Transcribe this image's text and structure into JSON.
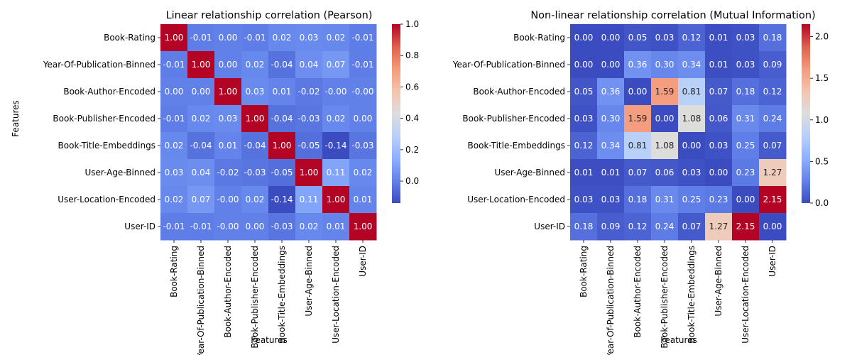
{
  "chart_data": [
    {
      "type": "heatmap",
      "title": "Linear relationship correlation (Pearson)",
      "xlabel": "Features",
      "ylabel": "Features",
      "rows": [
        "Book-Rating",
        "Year-Of-Publication-Binned",
        "Book-Author-Encoded",
        "Book-Publisher-Encoded",
        "Book-Title-Embeddings",
        "User-Age-Binned",
        "User-Location-Encoded",
        "User-ID"
      ],
      "columns": [
        "Book-Rating",
        "Year-Of-Publication-Binned",
        "Book-Author-Encoded",
        "Book-Publisher-Encoded",
        "Book-Title-Embeddings",
        "User-Age-Binned",
        "User-Location-Encoded",
        "User-ID"
      ],
      "values": [
        [
          1.0,
          -0.01,
          0.0,
          -0.01,
          0.02,
          0.03,
          0.02,
          -0.01
        ],
        [
          -0.01,
          1.0,
          0.0,
          0.02,
          -0.04,
          0.04,
          0.07,
          -0.01
        ],
        [
          0.0,
          0.0,
          1.0,
          0.03,
          0.01,
          -0.02,
          -0.0,
          -0.0
        ],
        [
          -0.01,
          0.02,
          0.03,
          1.0,
          -0.04,
          -0.03,
          0.02,
          0.0
        ],
        [
          0.02,
          -0.04,
          0.01,
          -0.04,
          1.0,
          -0.05,
          -0.14,
          -0.03
        ],
        [
          0.03,
          0.04,
          -0.02,
          -0.03,
          -0.05,
          1.0,
          0.11,
          0.02
        ],
        [
          0.02,
          0.07,
          -0.0,
          0.02,
          -0.14,
          0.11,
          1.0,
          0.01
        ],
        [
          -0.01,
          -0.01,
          -0.0,
          0.0,
          -0.03,
          0.02,
          0.01,
          1.0
        ]
      ],
      "labels": [
        [
          "1.00",
          "-0.01",
          "0.00",
          "-0.01",
          "0.02",
          "0.03",
          "0.02",
          "-0.01"
        ],
        [
          "-0.01",
          "1.00",
          "0.00",
          "0.02",
          "-0.04",
          "0.04",
          "0.07",
          "-0.01"
        ],
        [
          "0.00",
          "0.00",
          "1.00",
          "0.03",
          "0.01",
          "-0.02",
          "-0.00",
          "-0.00"
        ],
        [
          "-0.01",
          "0.02",
          "0.03",
          "1.00",
          "-0.04",
          "-0.03",
          "0.02",
          "0.00"
        ],
        [
          "0.02",
          "-0.04",
          "0.01",
          "-0.04",
          "1.00",
          "-0.05",
          "-0.14",
          "-0.03"
        ],
        [
          "0.03",
          "0.04",
          "-0.02",
          "-0.03",
          "-0.05",
          "1.00",
          "0.11",
          "0.02"
        ],
        [
          "0.02",
          "0.07",
          "-0.00",
          "0.02",
          "-0.14",
          "0.11",
          "1.00",
          "0.01"
        ],
        [
          "-0.01",
          "-0.01",
          "-0.00",
          "0.00",
          "-0.03",
          "0.02",
          "0.01",
          "1.00"
        ]
      ],
      "vmin": -0.14,
      "vmax": 1.0,
      "colormap": "coolwarm",
      "colorbar_ticks": [
        0.0,
        0.2,
        0.4,
        0.6,
        0.8,
        1.0
      ],
      "colorbar_tick_labels": [
        "0.0",
        "0.2",
        "0.4",
        "0.6",
        "0.8",
        "1.0"
      ]
    },
    {
      "type": "heatmap",
      "title": "Non-linear relationship correlation (Mutual Information)",
      "xlabel": "Features",
      "ylabel": "",
      "rows": [
        "Book-Rating",
        "Year-Of-Publication-Binned",
        "Book-Author-Encoded",
        "Book-Publisher-Encoded",
        "Book-Title-Embeddings",
        "User-Age-Binned",
        "User-Location-Encoded",
        "User-ID"
      ],
      "columns": [
        "Book-Rating",
        "Year-Of-Publication-Binned",
        "Book-Author-Encoded",
        "Book-Publisher-Encoded",
        "Book-Title-Embeddings",
        "User-Age-Binned",
        "User-Location-Encoded",
        "User-ID"
      ],
      "values": [
        [
          0.0,
          0.0,
          0.05,
          0.03,
          0.12,
          0.01,
          0.03,
          0.18
        ],
        [
          0.0,
          0.0,
          0.36,
          0.3,
          0.34,
          0.01,
          0.03,
          0.09
        ],
        [
          0.05,
          0.36,
          0.0,
          1.59,
          0.81,
          0.07,
          0.18,
          0.12
        ],
        [
          0.03,
          0.3,
          1.59,
          0.0,
          1.08,
          0.06,
          0.31,
          0.24
        ],
        [
          0.12,
          0.34,
          0.81,
          1.08,
          0.0,
          0.03,
          0.25,
          0.07
        ],
        [
          0.01,
          0.01,
          0.07,
          0.06,
          0.03,
          0.0,
          0.23,
          1.27
        ],
        [
          0.03,
          0.03,
          0.18,
          0.31,
          0.25,
          0.23,
          0.0,
          2.15
        ],
        [
          0.18,
          0.09,
          0.12,
          0.24,
          0.07,
          1.27,
          2.15,
          0.0
        ]
      ],
      "labels": [
        [
          "0.00",
          "0.00",
          "0.05",
          "0.03",
          "0.12",
          "0.01",
          "0.03",
          "0.18"
        ],
        [
          "0.00",
          "0.00",
          "0.36",
          "0.30",
          "0.34",
          "0.01",
          "0.03",
          "0.09"
        ],
        [
          "0.05",
          "0.36",
          "0.00",
          "1.59",
          "0.81",
          "0.07",
          "0.18",
          "0.12"
        ],
        [
          "0.03",
          "0.30",
          "1.59",
          "0.00",
          "1.08",
          "0.06",
          "0.31",
          "0.24"
        ],
        [
          "0.12",
          "0.34",
          "0.81",
          "1.08",
          "0.00",
          "0.03",
          "0.25",
          "0.07"
        ],
        [
          "0.01",
          "0.01",
          "0.07",
          "0.06",
          "0.03",
          "0.00",
          "0.23",
          "1.27"
        ],
        [
          "0.03",
          "0.03",
          "0.18",
          "0.31",
          "0.25",
          "0.23",
          "0.00",
          "2.15"
        ],
        [
          "0.18",
          "0.09",
          "0.12",
          "0.24",
          "0.07",
          "1.27",
          "2.15",
          "0.00"
        ]
      ],
      "vmin": 0.0,
      "vmax": 2.15,
      "colormap": "coolwarm",
      "colorbar_ticks": [
        0.0,
        0.5,
        1.0,
        1.5,
        2.0
      ],
      "colorbar_tick_labels": [
        "0.0",
        "0.5",
        "1.0",
        "1.5",
        "2.0"
      ]
    }
  ]
}
